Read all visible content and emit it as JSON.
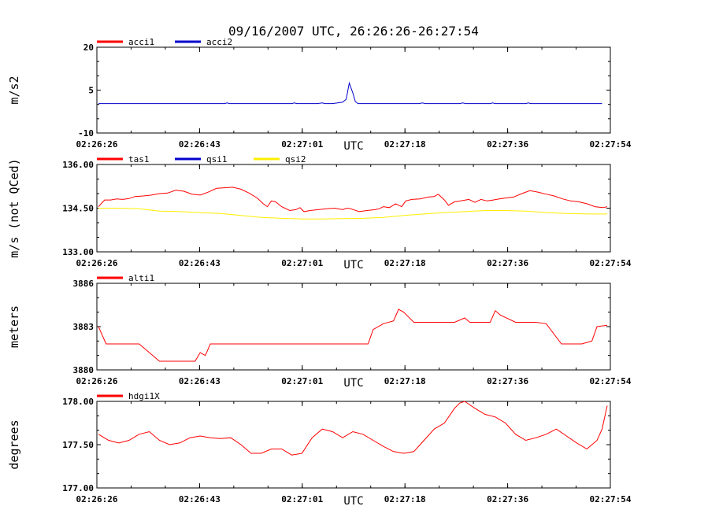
{
  "chart_data": [
    {
      "type": "line",
      "title": "09/16/2007  UTC, 26:26:26-26:27:54",
      "xlabel": "UTC",
      "ylabel": "m/s2",
      "ylim": [
        -10,
        20
      ],
      "yticks": [
        "20",
        "5",
        "-10"
      ],
      "xticks": [
        "02:26:26",
        "02:26:43",
        "02:27:01",
        "02:27:18",
        "02:27:36",
        "02:27:54"
      ],
      "series": [
        {
          "name": "acci1",
          "color": "#ff0000",
          "values": []
        },
        {
          "name": "acci2",
          "color": "#0000cc",
          "values": [
            [
              0,
              0.3
            ],
            [
              0.1,
              0.3
            ],
            [
              0.248,
              0.3
            ],
            [
              0.253,
              0.5
            ],
            [
              0.258,
              0.3
            ],
            [
              0.38,
              0.3
            ],
            [
              0.385,
              0.5
            ],
            [
              0.39,
              0.3
            ],
            [
              0.43,
              0.3
            ],
            [
              0.44,
              0.5
            ],
            [
              0.445,
              0.3
            ],
            [
              0.46,
              0.3
            ],
            [
              0.47,
              0.5
            ],
            [
              0.48,
              0.8
            ],
            [
              0.487,
              1.8
            ],
            [
              0.493,
              7.5
            ],
            [
              0.5,
              4.0
            ],
            [
              0.505,
              1.0
            ],
            [
              0.51,
              0.3
            ],
            [
              0.63,
              0.3
            ],
            [
              0.637,
              0.5
            ],
            [
              0.642,
              0.3
            ],
            [
              0.71,
              0.3
            ],
            [
              0.716,
              0.5
            ],
            [
              0.722,
              0.3
            ],
            [
              0.77,
              0.3
            ],
            [
              0.775,
              0.5
            ],
            [
              0.78,
              0.3
            ],
            [
              0.84,
              0.3
            ],
            [
              0.845,
              0.5
            ],
            [
              0.85,
              0.3
            ],
            [
              0.99,
              0.3
            ]
          ]
        }
      ]
    },
    {
      "type": "line",
      "title": "",
      "xlabel": "UTC",
      "ylabel": "m/s (not QCed)",
      "ylim": [
        133.0,
        136.0
      ],
      "yticks": [
        "136.00",
        "134.50",
        "133.00"
      ],
      "xticks": [
        "02:26:26",
        "02:26:43",
        "02:27:01",
        "02:27:18",
        "02:27:36",
        "02:27:54"
      ],
      "series": [
        {
          "name": "tas1",
          "color": "#ff0000",
          "values": [
            [
              0.0,
              134.55
            ],
            [
              0.015,
              134.78
            ],
            [
              0.03,
              134.78
            ],
            [
              0.045,
              134.82
            ],
            [
              0.06,
              134.8
            ],
            [
              0.075,
              134.83
            ],
            [
              0.09,
              134.9
            ],
            [
              0.11,
              134.92
            ],
            [
              0.13,
              134.95
            ],
            [
              0.15,
              135.0
            ],
            [
              0.17,
              135.02
            ],
            [
              0.19,
              135.12
            ],
            [
              0.21,
              135.08
            ],
            [
              0.23,
              134.98
            ],
            [
              0.25,
              134.95
            ],
            [
              0.27,
              135.05
            ],
            [
              0.29,
              135.18
            ],
            [
              0.31,
              135.2
            ],
            [
              0.33,
              135.22
            ],
            [
              0.35,
              135.15
            ],
            [
              0.37,
              135.02
            ],
            [
              0.39,
              134.85
            ],
            [
              0.405,
              134.65
            ],
            [
              0.415,
              134.55
            ],
            [
              0.425,
              134.75
            ],
            [
              0.435,
              134.72
            ],
            [
              0.45,
              134.55
            ],
            [
              0.47,
              134.42
            ],
            [
              0.485,
              134.45
            ],
            [
              0.495,
              134.52
            ],
            [
              0.505,
              134.38
            ],
            [
              0.52,
              134.42
            ],
            [
              0.54,
              134.45
            ],
            [
              0.56,
              134.48
            ],
            [
              0.58,
              134.5
            ],
            [
              0.6,
              134.45
            ],
            [
              0.61,
              134.5
            ],
            [
              0.62,
              134.48
            ],
            [
              0.64,
              134.38
            ],
            [
              0.66,
              134.42
            ],
            [
              0.68,
              134.45
            ],
            [
              0.69,
              134.48
            ],
            [
              0.7,
              134.55
            ],
            [
              0.715,
              134.52
            ],
            [
              0.73,
              134.65
            ],
            [
              0.745,
              134.55
            ],
            [
              0.755,
              134.75
            ],
            [
              0.77,
              134.8
            ],
            [
              0.79,
              134.82
            ],
            [
              0.81,
              134.88
            ],
            [
              0.825,
              134.9
            ],
            [
              0.835,
              134.98
            ],
            [
              0.85,
              134.78
            ],
            [
              0.86,
              134.6
            ],
            [
              0.875,
              134.72
            ],
            [
              0.89,
              134.75
            ],
            [
              0.91,
              134.8
            ],
            [
              0.925,
              134.7
            ],
            [
              0.94,
              134.8
            ],
            [
              0.955,
              134.75
            ],
            [
              0.97,
              134.78
            ],
            [
              0.985,
              134.82
            ],
            [
              1.0,
              134.85
            ],
            [
              1.02,
              134.88
            ],
            [
              1.04,
              135.0
            ],
            [
              1.06,
              135.1
            ],
            [
              1.08,
              135.05
            ],
            [
              1.1,
              134.98
            ],
            [
              1.12,
              134.92
            ],
            [
              1.14,
              134.82
            ],
            [
              1.16,
              134.75
            ],
            [
              1.18,
              134.72
            ],
            [
              1.2,
              134.65
            ],
            [
              1.22,
              134.55
            ],
            [
              1.24,
              134.52
            ],
            [
              1.25,
              134.55
            ]
          ]
        },
        {
          "name": "qsi1",
          "color": "#0000cc",
          "values": []
        },
        {
          "name": "qsi2",
          "color": "#ffee00",
          "values": [
            [
              0.0,
              134.5
            ],
            [
              0.05,
              134.5
            ],
            [
              0.1,
              134.48
            ],
            [
              0.15,
              134.4
            ],
            [
              0.2,
              134.38
            ],
            [
              0.25,
              134.35
            ],
            [
              0.3,
              134.32
            ],
            [
              0.35,
              134.25
            ],
            [
              0.4,
              134.18
            ],
            [
              0.45,
              134.15
            ],
            [
              0.5,
              134.13
            ],
            [
              0.55,
              134.13
            ],
            [
              0.6,
              134.14
            ],
            [
              0.65,
              134.15
            ],
            [
              0.7,
              134.18
            ],
            [
              0.75,
              134.25
            ],
            [
              0.8,
              134.3
            ],
            [
              0.85,
              134.35
            ],
            [
              0.9,
              134.38
            ],
            [
              0.95,
              134.42
            ],
            [
              1.0,
              134.42
            ],
            [
              1.05,
              134.4
            ],
            [
              1.1,
              134.35
            ],
            [
              1.15,
              134.32
            ],
            [
              1.2,
              134.3
            ],
            [
              1.25,
              134.3
            ]
          ]
        }
      ]
    },
    {
      "type": "line",
      "title": "",
      "xlabel": "UTC",
      "ylabel": "meters",
      "ylim": [
        3880,
        3886
      ],
      "yticks": [
        "3886",
        "3883",
        "3880"
      ],
      "xticks": [
        "02:26:26",
        "02:26:43",
        "02:27:01",
        "02:27:18",
        "02:27:36",
        "02:27:54"
      ],
      "series": [
        {
          "name": "alti1",
          "color": "#ff0000",
          "values": [
            [
              0.0,
              3883.0
            ],
            [
              0.015,
              3881.8
            ],
            [
              0.08,
              3881.8
            ],
            [
              0.1,
              3881.2
            ],
            [
              0.12,
              3880.6
            ],
            [
              0.17,
              3880.6
            ],
            [
              0.19,
              3880.6
            ],
            [
              0.2,
              3881.2
            ],
            [
              0.21,
              3881.0
            ],
            [
              0.22,
              3881.8
            ],
            [
              0.53,
              3881.8
            ],
            [
              0.54,
              3882.8
            ],
            [
              0.56,
              3883.2
            ],
            [
              0.58,
              3883.4
            ],
            [
              0.59,
              3884.2
            ],
            [
              0.6,
              3884.0
            ],
            [
              0.62,
              3883.3
            ],
            [
              0.7,
              3883.3
            ],
            [
              0.72,
              3883.6
            ],
            [
              0.73,
              3883.3
            ],
            [
              0.77,
              3883.3
            ],
            [
              0.78,
              3884.1
            ],
            [
              0.79,
              3883.8
            ],
            [
              0.82,
              3883.3
            ],
            [
              0.86,
              3883.3
            ],
            [
              0.88,
              3883.2
            ],
            [
              0.91,
              3881.8
            ],
            [
              0.95,
              3881.8
            ],
            [
              0.97,
              3882.0
            ],
            [
              0.98,
              3883.0
            ],
            [
              1.0,
              3883.1
            ]
          ]
        }
      ]
    },
    {
      "type": "line",
      "title": "",
      "xlabel": "UTC",
      "ylabel": "degrees",
      "ylim": [
        177.0,
        178.0
      ],
      "yticks": [
        "178.00",
        "177.50",
        "177.00"
      ],
      "xticks": [
        "02:26:26",
        "02:26:43",
        "02:27:01",
        "02:27:18",
        "02:27:36",
        "02:27:54"
      ],
      "series": [
        {
          "name": "hdgi1X",
          "color": "#ff0000",
          "values": [
            [
              0.0,
              177.62
            ],
            [
              0.02,
              177.55
            ],
            [
              0.04,
              177.52
            ],
            [
              0.06,
              177.55
            ],
            [
              0.08,
              177.62
            ],
            [
              0.1,
              177.65
            ],
            [
              0.12,
              177.55
            ],
            [
              0.14,
              177.5
            ],
            [
              0.16,
              177.52
            ],
            [
              0.18,
              177.58
            ],
            [
              0.2,
              177.6
            ],
            [
              0.22,
              177.58
            ],
            [
              0.24,
              177.57
            ],
            [
              0.26,
              177.58
            ],
            [
              0.28,
              177.5
            ],
            [
              0.3,
              177.4
            ],
            [
              0.32,
              177.4
            ],
            [
              0.34,
              177.45
            ],
            [
              0.36,
              177.45
            ],
            [
              0.38,
              177.38
            ],
            [
              0.4,
              177.4
            ],
            [
              0.42,
              177.58
            ],
            [
              0.44,
              177.68
            ],
            [
              0.46,
              177.65
            ],
            [
              0.48,
              177.58
            ],
            [
              0.5,
              177.65
            ],
            [
              0.52,
              177.62
            ],
            [
              0.54,
              177.55
            ],
            [
              0.56,
              177.48
            ],
            [
              0.58,
              177.42
            ],
            [
              0.6,
              177.4
            ],
            [
              0.62,
              177.42
            ],
            [
              0.64,
              177.55
            ],
            [
              0.66,
              177.68
            ],
            [
              0.68,
              177.75
            ],
            [
              0.7,
              177.92
            ],
            [
              0.71,
              177.98
            ],
            [
              0.72,
              178.0
            ],
            [
              0.74,
              177.92
            ],
            [
              0.76,
              177.85
            ],
            [
              0.78,
              177.82
            ],
            [
              0.8,
              177.75
            ],
            [
              0.82,
              177.62
            ],
            [
              0.84,
              177.55
            ],
            [
              0.86,
              177.58
            ],
            [
              0.88,
              177.62
            ],
            [
              0.9,
              177.68
            ],
            [
              0.92,
              177.6
            ],
            [
              0.94,
              177.52
            ],
            [
              0.96,
              177.45
            ],
            [
              0.98,
              177.55
            ],
            [
              0.99,
              177.68
            ],
            [
              1.0,
              177.95
            ]
          ]
        }
      ]
    }
  ]
}
